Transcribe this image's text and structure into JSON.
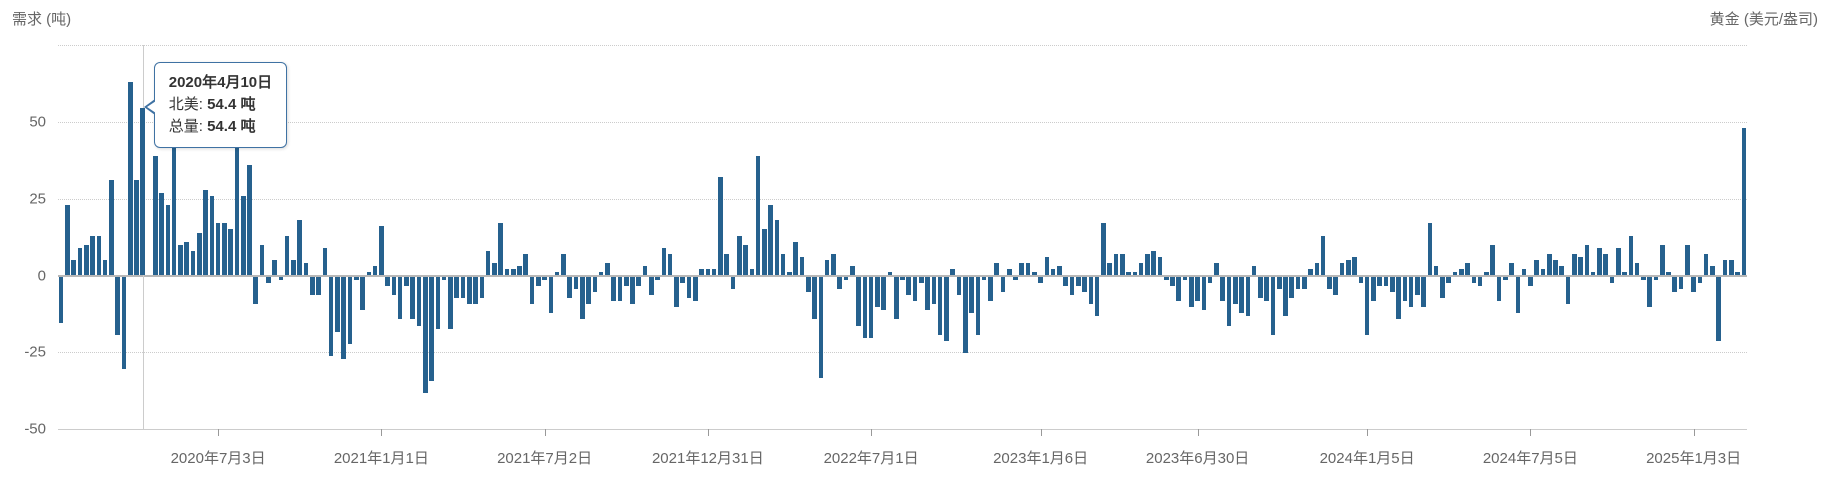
{
  "header": {
    "left_axis_title": "需求 (吨)",
    "right_axis_title": "黄金 (美元/盎司)"
  },
  "tooltip": {
    "date": "2020年4月10日",
    "rows": [
      {
        "label": "北美:",
        "value": "54.4 吨"
      },
      {
        "label": "总量:",
        "value": "54.4 吨"
      }
    ],
    "anchor_bar_index": 13,
    "anchor_value": 54.4
  },
  "chart_data": {
    "type": "bar",
    "title": "",
    "xlabel": "",
    "ylabel": "需求 (吨)",
    "ylabel_right": "黄金 (美元/盎司)",
    "unit": "吨",
    "ylim": [
      -50,
      75
    ],
    "y_ticks": [
      50,
      25,
      0,
      -25,
      -50
    ],
    "grid": "horizontal-dotted",
    "legend_position": "none",
    "x_ticks": [
      {
        "label": "2020年7月3日",
        "bar_index": 25
      },
      {
        "label": "2021年1月1日",
        "bar_index": 51
      },
      {
        "label": "2021年7月2日",
        "bar_index": 77
      },
      {
        "label": "2021年12月31日",
        "bar_index": 103
      },
      {
        "label": "2022年7月1日",
        "bar_index": 129
      },
      {
        "label": "2023年1月6日",
        "bar_index": 156
      },
      {
        "label": "2023年6月30日",
        "bar_index": 181
      },
      {
        "label": "2024年1月5日",
        "bar_index": 208
      },
      {
        "label": "2024年7月5日",
        "bar_index": 234
      },
      {
        "label": "2025年1月3日",
        "bar_index": 260
      }
    ],
    "series": [
      {
        "name": "北美",
        "values": [
          -15,
          23,
          5,
          9,
          10,
          13,
          13,
          5,
          31,
          -19,
          -30,
          63,
          31,
          54.4,
          0,
          39,
          27,
          23,
          44,
          10,
          11,
          8,
          14,
          28,
          26,
          17,
          17,
          15,
          44,
          26,
          36,
          -9,
          10,
          -2,
          5,
          -1,
          13,
          5,
          18,
          4,
          -6,
          -6,
          9,
          -26,
          -18,
          -27,
          -22,
          -1,
          -11,
          1,
          3,
          16,
          -3,
          -6,
          -14,
          -3,
          -14,
          -16,
          -38,
          -34,
          -17,
          -1,
          -17,
          -7,
          -7,
          -9,
          -9,
          -7,
          8,
          4,
          17,
          2,
          2,
          3,
          7,
          -9,
          -3,
          -1,
          -12,
          1,
          7,
          -7,
          -4,
          -14,
          -9,
          -5,
          1,
          4,
          -8,
          -8,
          -3,
          -9,
          -3,
          3,
          -6,
          -1,
          9,
          7,
          -10,
          -2,
          -7,
          -8,
          2,
          2,
          2,
          32,
          7,
          -4,
          13,
          10,
          2,
          39,
          15,
          23,
          18,
          7,
          1,
          11,
          6,
          -5,
          -14,
          -33,
          5,
          7,
          -4,
          -1,
          3,
          -16,
          -20,
          -20,
          -10,
          -11,
          1,
          -14,
          -1,
          -6,
          -8,
          -2,
          -11,
          -9,
          -19,
          -21,
          2,
          -6,
          -25,
          -12,
          -19,
          -1,
          -8,
          4,
          -5,
          2,
          -1,
          4,
          4,
          1,
          -2,
          6,
          2,
          3,
          -3,
          -6,
          -3,
          -5,
          -9,
          -13,
          17,
          4,
          7,
          7,
          1,
          1,
          4,
          7,
          8,
          6,
          -1,
          -3,
          -8,
          -1,
          -10,
          -8,
          -11,
          -2,
          4,
          -8,
          -16,
          -9,
          -12,
          -13,
          3,
          -7,
          -8,
          -19,
          -4,
          -13,
          -7,
          -4,
          -4,
          2,
          4,
          13,
          -4,
          -6,
          4,
          5,
          6,
          -2,
          -19,
          -8,
          -3,
          -3,
          -5,
          -14,
          -8,
          -10,
          -6,
          -10,
          17,
          3,
          -7,
          -2,
          1,
          2,
          4,
          -2,
          -3,
          1,
          10,
          -8,
          -1,
          4,
          -12,
          2,
          -3,
          5,
          2,
          7,
          5,
          3,
          -9,
          7,
          6,
          10,
          1,
          9,
          7,
          -2,
          9,
          1,
          13,
          4,
          -1,
          -10,
          -1,
          10,
          1,
          -5,
          -4,
          10,
          -5,
          -2,
          7,
          3,
          -21,
          5,
          5,
          1,
          48
        ]
      }
    ]
  },
  "colors": {
    "bar": "#26618e",
    "axis_text": "#666666",
    "grid": "#cccccc",
    "zero_line": "#b8b8b8",
    "tooltip_border": "#3f72a3",
    "crosshair": "#cccccc"
  }
}
